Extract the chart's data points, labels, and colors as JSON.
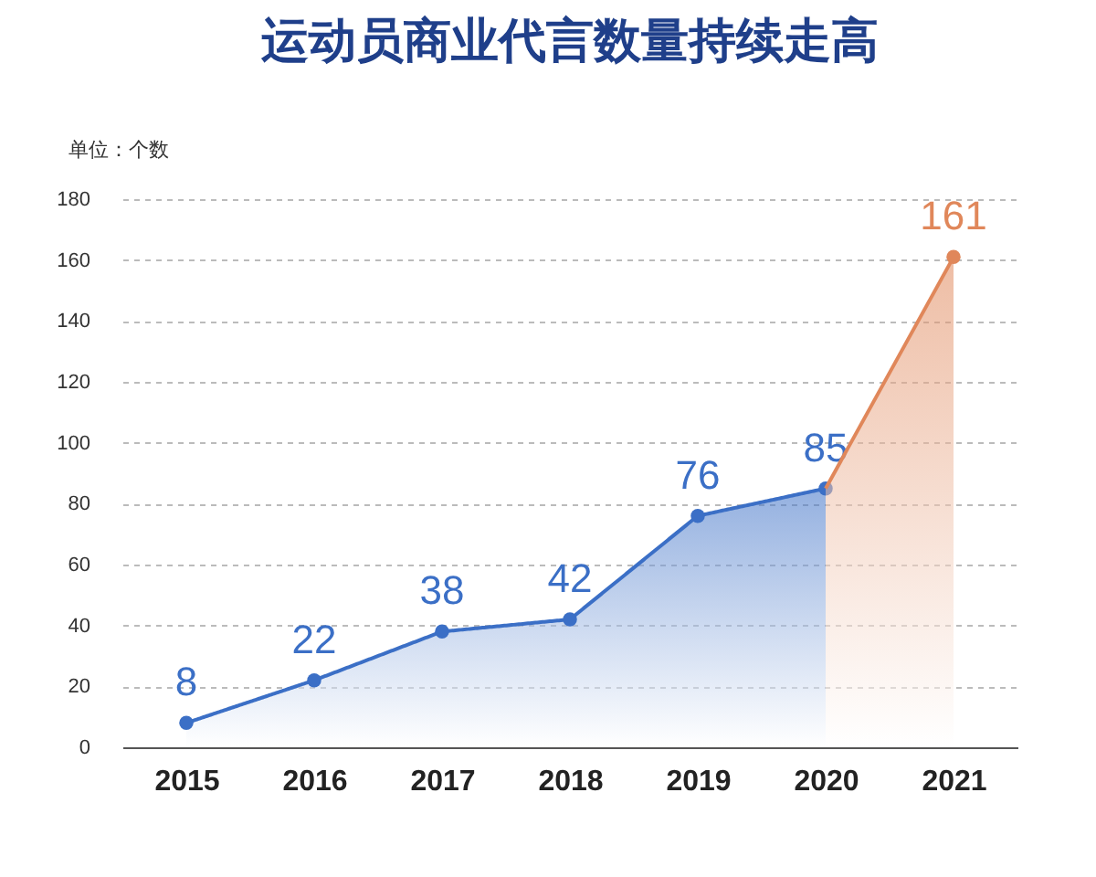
{
  "chart_data": {
    "type": "area",
    "title": "运动员商业代言数量持续走高",
    "ylabel": "单位：个数",
    "categories": [
      "2015",
      "2016",
      "2017",
      "2018",
      "2019",
      "2020",
      "2021"
    ],
    "series": [
      {
        "color": "#3b6fc6",
        "values": [
          8,
          22,
          38,
          42,
          76,
          85,
          null
        ],
        "value_labels": [
          "8",
          "22",
          "38",
          "42",
          "76",
          "85",
          null
        ]
      },
      {
        "color": "#e0875a",
        "values": [
          null,
          null,
          null,
          null,
          null,
          85,
          161
        ],
        "value_labels": [
          null,
          null,
          null,
          null,
          null,
          null,
          "161"
        ]
      }
    ],
    "ylim": [
      0,
      180
    ],
    "yticks": [
      0,
      20,
      40,
      60,
      80,
      100,
      120,
      140,
      160,
      180
    ],
    "grid": "y",
    "marker": "circle"
  }
}
